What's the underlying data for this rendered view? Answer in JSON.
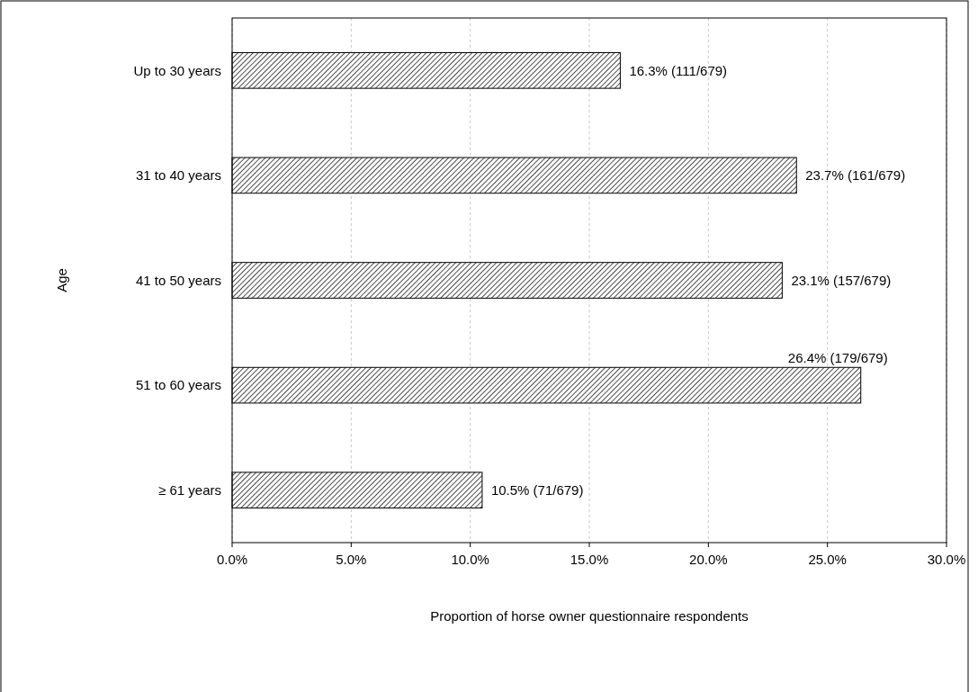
{
  "chart_data": {
    "type": "bar",
    "orientation": "horizontal",
    "xlabel": "Proportion of horse owner questionnaire respondents",
    "ylabel": "Age",
    "categories": [
      "Up to 30 years",
      "31 to 40 years",
      "41 to 50 years",
      "51 to 60 years",
      "≥ 61 years"
    ],
    "values": [
      16.3,
      23.7,
      23.1,
      26.4,
      10.5
    ],
    "value_labels": [
      "16.3% (111/679)",
      "23.7% (161/679)",
      "23.1% (157/679)",
      "26.4% (179/679)",
      "10.5% (71/679)"
    ],
    "color": "#000000",
    "xlim": [
      0,
      30
    ],
    "xticks": [
      {
        "value": 0,
        "label": "0.0%"
      },
      {
        "value": 5,
        "label": "5.0%"
      },
      {
        "value": 10,
        "label": "10.0%"
      },
      {
        "value": 15,
        "label": "15.0%"
      },
      {
        "value": 20,
        "label": "20.0%"
      },
      {
        "value": 25,
        "label": "25.0%"
      },
      {
        "value": 30,
        "label": "30.0%"
      }
    ],
    "grid": "x"
  }
}
